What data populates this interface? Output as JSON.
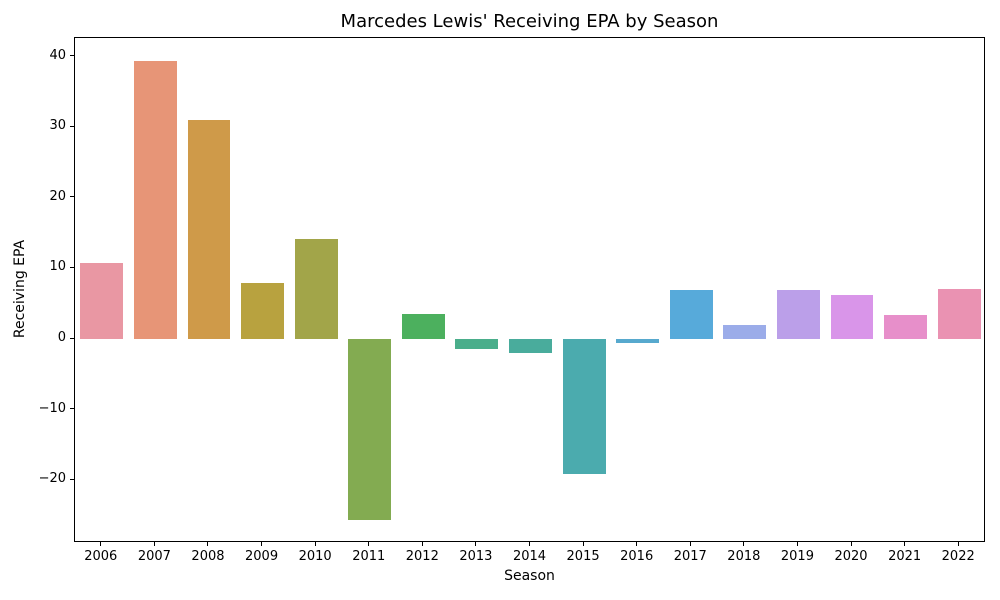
{
  "chart_data": {
    "type": "bar",
    "title": "Marcedes Lewis' Receiving EPA by Season",
    "xlabel": "Season",
    "ylabel": "Receiving EPA",
    "categories": [
      "2006",
      "2007",
      "2008",
      "2009",
      "2010",
      "2011",
      "2012",
      "2013",
      "2014",
      "2015",
      "2016",
      "2017",
      "2018",
      "2019",
      "2020",
      "2021",
      "2022"
    ],
    "values": [
      10.8,
      39.4,
      31.0,
      8.0,
      14.2,
      -25.7,
      3.5,
      -1.4,
      -2.0,
      -19.1,
      -0.5,
      7.0,
      2.0,
      6.9,
      6.2,
      3.4,
      7.1
    ],
    "bar_colors": [
      "#e997a3",
      "#e79577",
      "#cf9a49",
      "#b8a23f",
      "#a2a549",
      "#83ab51",
      "#4cb05e",
      "#4aae8b",
      "#49ac9c",
      "#4babae",
      "#57a9ce",
      "#57aada",
      "#9bace9",
      "#bb9fe9",
      "#d995e9",
      "#e78fca",
      "#ea92b2"
    ],
    "ylim": [
      -28.9,
      42.65
    ],
    "yticks": [
      40,
      30,
      20,
      10,
      0,
      -10,
      -20
    ],
    "grid": false,
    "legend": null,
    "spine_color": "#000000",
    "background": "#ffffff"
  }
}
